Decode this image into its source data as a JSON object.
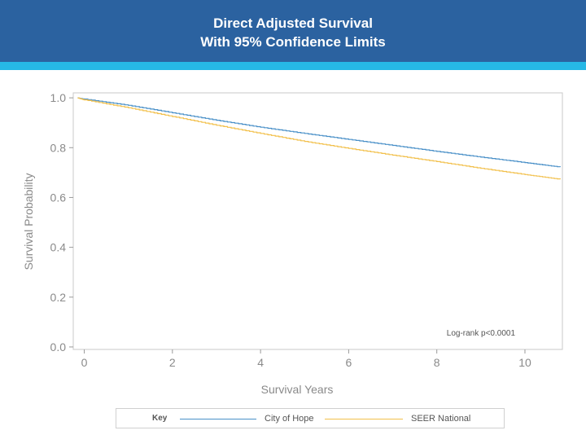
{
  "header": {
    "title_line1": "Direct Adjusted Survival",
    "title_line2": "With 95% Confidence Limits",
    "color": "#2b62a0",
    "stripe_color": "#26b8e6"
  },
  "legend": {
    "key_label": "Key",
    "items": [
      {
        "label": "City of Hope",
        "color": "#4a90c8"
      },
      {
        "label": "SEER National",
        "color": "#f2c04c"
      }
    ]
  },
  "chart_data": {
    "type": "line",
    "title": "Direct Adjusted Survival With 95% Confidence Limits",
    "xlabel": "Survival Years",
    "ylabel": "Survival Probability",
    "xlim": [
      -0.25,
      10.85
    ],
    "ylim": [
      -0.01,
      1.02
    ],
    "xticks": [
      0,
      2,
      4,
      6,
      8,
      10
    ],
    "xtick_labels": [
      "0",
      "2",
      "4",
      "6",
      "8",
      "10"
    ],
    "yticks": [
      0.0,
      0.2,
      0.4,
      0.6,
      0.8,
      1.0
    ],
    "ytick_labels": [
      "0.0",
      "0.2",
      "0.4",
      "0.6",
      "0.8",
      "1.0"
    ],
    "grid": false,
    "legend_position": "bottom",
    "annotation": "Log-rank p<0.0001",
    "series": [
      {
        "name": "City of Hope",
        "color": "#4a90c8",
        "x": [
          -0.15,
          0,
          1,
          2,
          3,
          4,
          5,
          6,
          7,
          8,
          9,
          10,
          10.8
        ],
        "y": [
          1.0,
          0.995,
          0.97,
          0.94,
          0.91,
          0.882,
          0.857,
          0.833,
          0.809,
          0.785,
          0.762,
          0.74,
          0.722
        ]
      },
      {
        "name": "SEER National",
        "color": "#f2c04c",
        "x": [
          -0.15,
          0,
          1,
          2,
          3,
          4,
          5,
          6,
          7,
          8,
          9,
          10,
          10.8
        ],
        "y": [
          1.0,
          0.992,
          0.96,
          0.925,
          0.89,
          0.857,
          0.825,
          0.797,
          0.77,
          0.744,
          0.717,
          0.692,
          0.673
        ]
      }
    ]
  }
}
